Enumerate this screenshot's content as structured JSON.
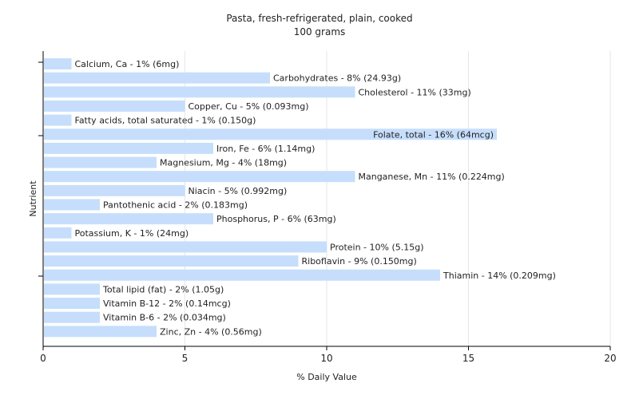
{
  "chart_data": {
    "type": "bar",
    "orientation": "horizontal",
    "title": "Pasta, fresh-refrigerated, plain, cooked",
    "subtitle": "100 grams",
    "xlabel": "% Daily Value",
    "ylabel": "Nutrient",
    "xlim": [
      0,
      20
    ],
    "xticks": [
      0,
      5,
      10,
      15,
      20
    ],
    "grid": "vertical",
    "bar_color": "#c6defc",
    "categories": [
      "Calcium, Ca",
      "Carbohydrates",
      "Cholesterol",
      "Copper, Cu",
      "Fatty acids, total saturated",
      "Folate, total",
      "Iron, Fe",
      "Magnesium, Mg",
      "Manganese, Mn",
      "Niacin",
      "Pantothenic acid",
      "Phosphorus, P",
      "Potassium, K",
      "Protein",
      "Riboflavin",
      "Thiamin",
      "Total lipid (fat)",
      "Vitamin B-12",
      "Vitamin B-6",
      "Zinc, Zn"
    ],
    "values": [
      1,
      8,
      11,
      5,
      1,
      16,
      6,
      4,
      11,
      5,
      2,
      6,
      1,
      10,
      9,
      14,
      2,
      2,
      2,
      4
    ],
    "labels": [
      "Calcium, Ca - 1% (6mg)",
      "Carbohydrates - 8% (24.93g)",
      "Cholesterol - 11% (33mg)",
      "Copper, Cu - 5% (0.093mg)",
      "Fatty acids, total saturated - 1% (0.150g)",
      "Folate, total - 16% (64mcg)",
      "Iron, Fe - 6% (1.14mg)",
      "Magnesium, Mg - 4% (18mg)",
      "Manganese, Mn - 11% (0.224mg)",
      "Niacin - 5% (0.992mg)",
      "Pantothenic acid - 2% (0.183mg)",
      "Phosphorus, P - 6% (63mg)",
      "Potassium, K - 1% (24mg)",
      "Protein - 10% (5.15g)",
      "Riboflavin - 9% (0.150mg)",
      "Thiamin - 14% (0.209mg)",
      "Total lipid (fat) - 2% (1.05g)",
      "Vitamin B-12 - 2% (0.14mcg)",
      "Vitamin B-6 - 2% (0.034mg)",
      "Zinc, Zn - 4% (0.56mg)"
    ]
  }
}
